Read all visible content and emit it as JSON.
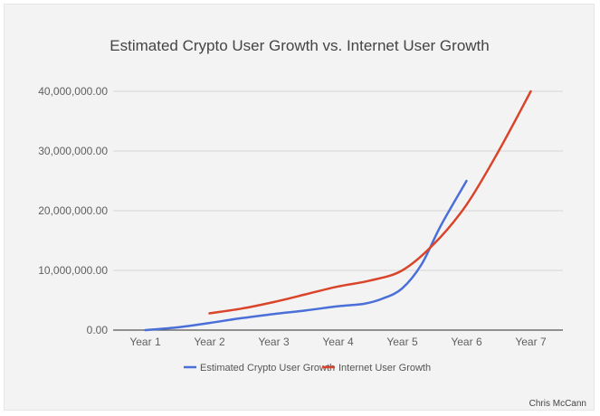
{
  "credit": "Chris McCann",
  "chart_data": {
    "type": "line",
    "title": "Estimated Crypto User Growth vs. Internet User Growth",
    "xlabel": "",
    "ylabel": "",
    "categories": [
      "Year 1",
      "Year 2",
      "Year 3",
      "Year 4",
      "Year 5",
      "Year 6",
      "Year 7"
    ],
    "ylim": [
      0,
      40000000
    ],
    "yticks": [
      0,
      10000000,
      20000000,
      30000000,
      40000000
    ],
    "ytick_labels": [
      "0.00",
      "10,000,000.00",
      "20,000,000.00",
      "30,000,000.00",
      "40,000,000.00"
    ],
    "grid": true,
    "legend_position": "bottom",
    "series": [
      {
        "name": "Estimated Crypto User Growth",
        "color": "#4a6fd8",
        "points": [
          [
            1.0,
            0
          ],
          [
            1.5,
            450000
          ],
          [
            2.0,
            1200000
          ],
          [
            2.5,
            2000000
          ],
          [
            3.0,
            2700000
          ],
          [
            3.5,
            3300000
          ],
          [
            4.0,
            4000000
          ],
          [
            4.4,
            4400000
          ],
          [
            4.7,
            5300000
          ],
          [
            5.0,
            7000000
          ],
          [
            5.3,
            11000000
          ],
          [
            5.6,
            17500000
          ],
          [
            6.0,
            25000000
          ]
        ]
      },
      {
        "name": "Internet User Growth",
        "color": "#d9442a",
        "points": [
          [
            2.0,
            2800000
          ],
          [
            2.5,
            3600000
          ],
          [
            3.0,
            4700000
          ],
          [
            3.5,
            6000000
          ],
          [
            4.0,
            7300000
          ],
          [
            4.5,
            8300000
          ],
          [
            5.0,
            10000000
          ],
          [
            5.5,
            14500000
          ],
          [
            6.0,
            21000000
          ],
          [
            6.5,
            30000000
          ],
          [
            7.0,
            40000000
          ]
        ]
      }
    ]
  }
}
